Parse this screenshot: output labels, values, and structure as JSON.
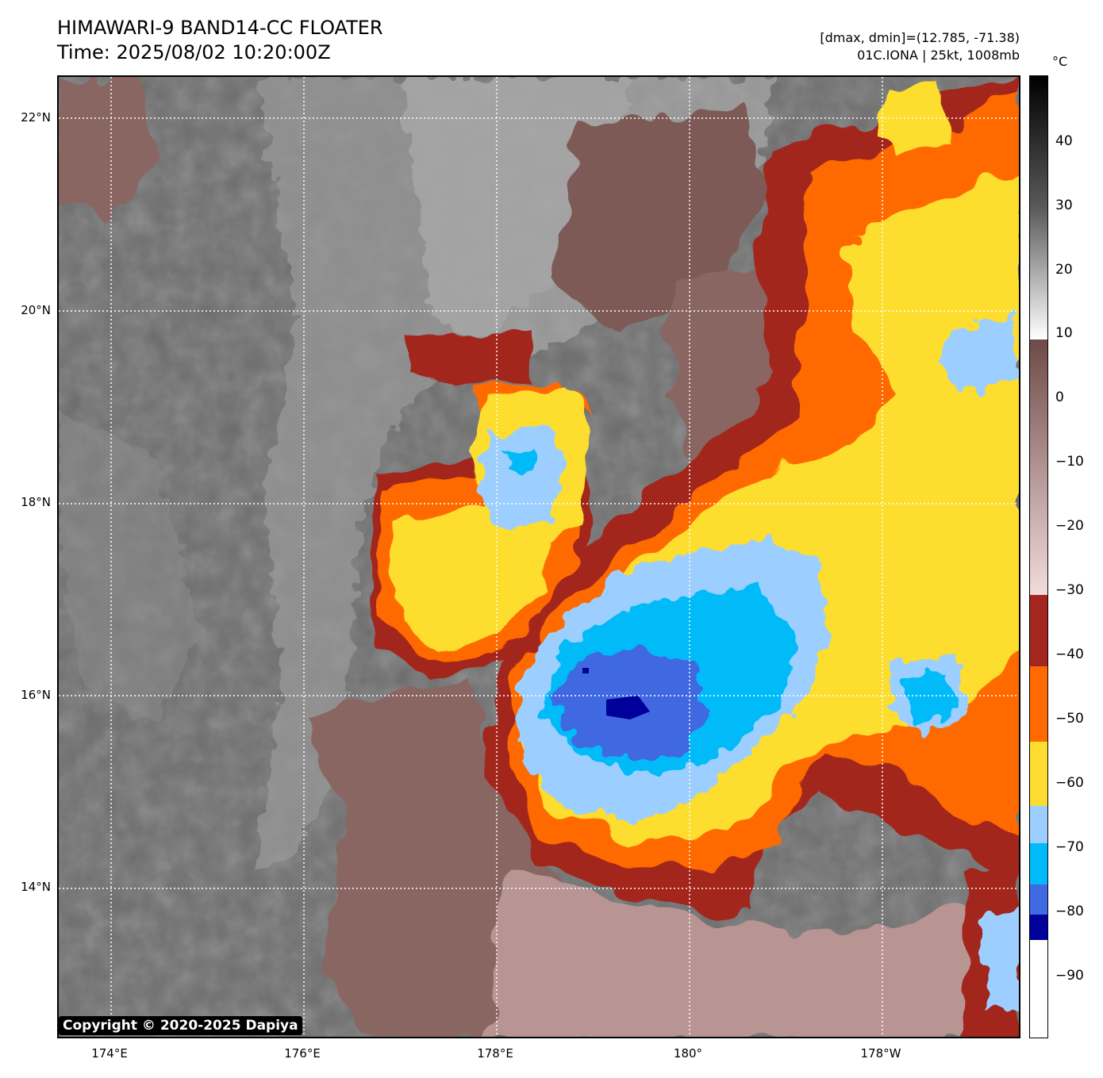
{
  "header": {
    "title": "HIMAWARI-9 BAND14-CC FLOATER",
    "time": "Time: 2025/08/02 10:20:00Z",
    "dmax_dmin": "[dmax, dmin]=(12.785, -71.38)",
    "storm": "01C.IONA | 25kt, 1008mb"
  },
  "copyright": "Copyright © 2020-2025 Dapiya",
  "lat_labels": [
    "22°N",
    "20°N",
    "18°N",
    "16°N",
    "14°N"
  ],
  "lon_labels": [
    "174°E",
    "176°E",
    "178°E",
    "180°",
    "178°W"
  ],
  "colorbar": {
    "unit": "°C",
    "ticks": [
      "40",
      "30",
      "20",
      "10",
      "0",
      "−10",
      "−20",
      "−30",
      "−40",
      "−50",
      "−60",
      "−70",
      "−80",
      "−90"
    ],
    "colors": {
      "dark_red": "#a3261f",
      "orange": "#ff6a00",
      "yellow": "#fddd2f",
      "light_blue": "#9ccfff",
      "cyan": "#00bbf7",
      "royal_blue": "#4169e1",
      "navy": "#00009b"
    }
  }
}
